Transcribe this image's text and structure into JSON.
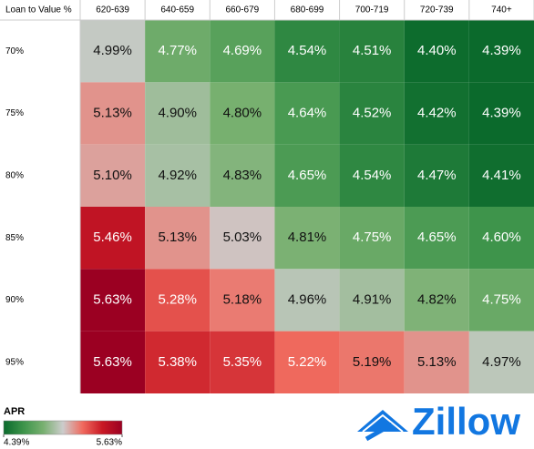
{
  "chart_data": {
    "type": "heatmap",
    "y_label": "Loan to Value %",
    "columns": [
      "620-639",
      "640-659",
      "660-679",
      "680-699",
      "700-719",
      "720-739",
      "740+"
    ],
    "rows": [
      "70%",
      "75%",
      "80%",
      "85%",
      "90%",
      "95%"
    ],
    "values": [
      [
        4.99,
        4.77,
        4.69,
        4.54,
        4.51,
        4.4,
        4.39
      ],
      [
        5.13,
        4.9,
        4.8,
        4.64,
        4.52,
        4.42,
        4.39
      ],
      [
        5.1,
        4.92,
        4.83,
        4.65,
        4.54,
        4.47,
        4.41
      ],
      [
        5.46,
        5.13,
        5.03,
        4.81,
        4.75,
        4.65,
        4.6
      ],
      [
        5.63,
        5.28,
        5.18,
        4.96,
        4.91,
        4.82,
        4.75
      ],
      [
        5.63,
        5.38,
        5.35,
        5.22,
        5.19,
        5.13,
        4.97
      ]
    ],
    "value_labels": [
      [
        "4.99%",
        "4.77%",
        "4.69%",
        "4.54%",
        "4.51%",
        "4.40%",
        "4.39%"
      ],
      [
        "5.13%",
        "4.90%",
        "4.80%",
        "4.64%",
        "4.52%",
        "4.42%",
        "4.39%"
      ],
      [
        "5.10%",
        "4.92%",
        "4.83%",
        "4.65%",
        "4.54%",
        "4.47%",
        "4.41%"
      ],
      [
        "5.46%",
        "5.13%",
        "5.03%",
        "4.81%",
        "4.75%",
        "4.65%",
        "4.60%"
      ],
      [
        "5.63%",
        "5.28%",
        "5.18%",
        "4.96%",
        "4.91%",
        "4.82%",
        "4.75%"
      ],
      [
        "5.63%",
        "5.38%",
        "5.35%",
        "5.22%",
        "5.19%",
        "5.13%",
        "4.97%"
      ]
    ],
    "color_scale": [
      "#0b6a2c",
      "#3d944a",
      "#78b070",
      "#cccccc",
      "#f06a5e",
      "#c81824",
      "#9b0022"
    ],
    "colorbar": {
      "title": "APR",
      "ticks": [
        {
          "value": 4.39,
          "label": "4.39%"
        },
        {
          "value": 5.63,
          "label": "5.63%"
        }
      ]
    },
    "logo": "Zillow"
  }
}
